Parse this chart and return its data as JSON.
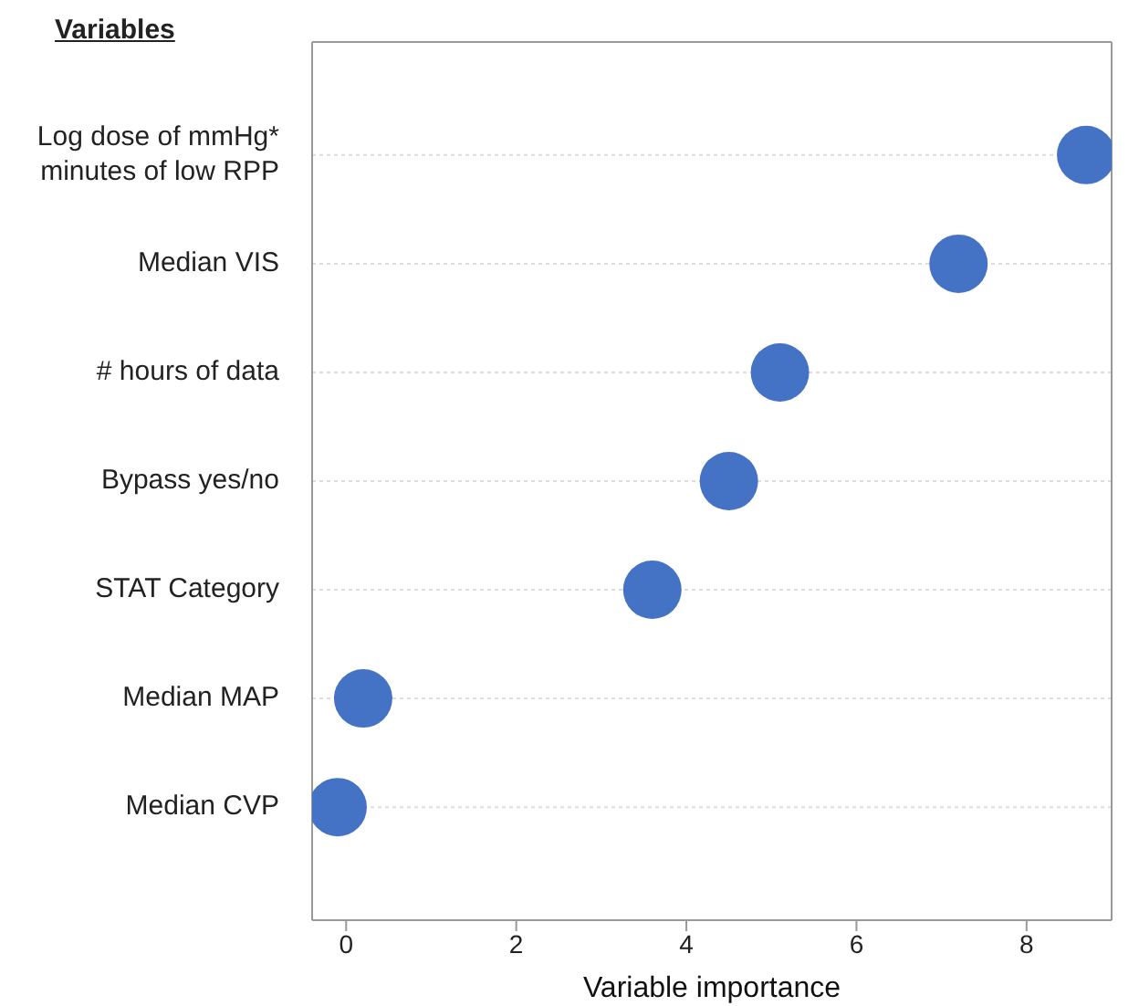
{
  "chart_data": {
    "type": "scatter",
    "orientation": "horizontal",
    "ylabel": "Variables",
    "xlabel": "Variable importance",
    "categories": [
      "Log dose of mmHg* minutes of low RPP",
      "Median VIS",
      "# hours of data",
      "Bypass yes/no",
      "STAT Category",
      "Median MAP",
      "Median CVP"
    ],
    "values": [
      8.7,
      7.2,
      5.1,
      4.5,
      3.6,
      0.2,
      -0.1
    ],
    "color": "#4472c4",
    "xlim": [
      -0.4,
      9.0
    ],
    "xticks": [
      0,
      2,
      4,
      6,
      8
    ],
    "grid": "y",
    "marker": "circle",
    "legend": false
  }
}
